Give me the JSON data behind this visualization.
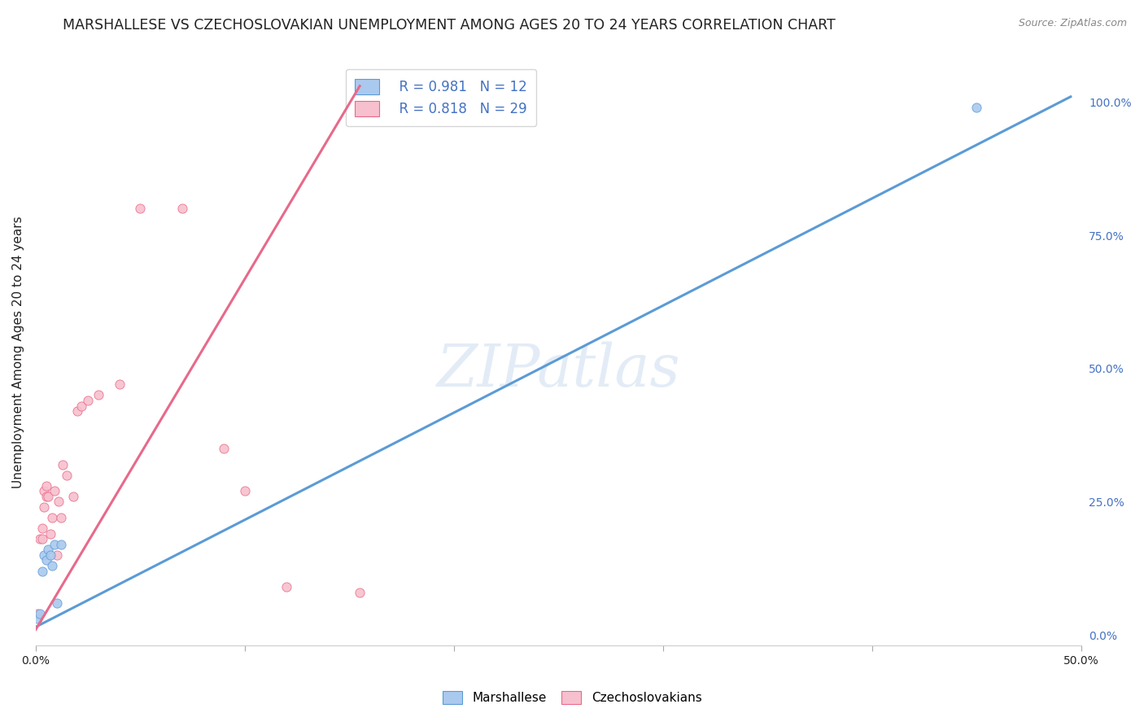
{
  "title": "MARSHALLESE VS CZECHOSLOVAKIAN UNEMPLOYMENT AMONG AGES 20 TO 24 YEARS CORRELATION CHART",
  "source": "Source: ZipAtlas.com",
  "ylabel": "Unemployment Among Ages 20 to 24 years",
  "xlim": [
    0.0,
    0.5
  ],
  "ylim": [
    -0.02,
    1.08
  ],
  "xtick_pos": [
    0.0,
    0.1,
    0.2,
    0.3,
    0.4,
    0.5
  ],
  "xtick_labels": [
    "0.0%",
    "",
    "",
    "",
    "",
    "50.0%"
  ],
  "ytick_labels_right": [
    "0.0%",
    "25.0%",
    "50.0%",
    "75.0%",
    "100.0%"
  ],
  "ytick_positions_right": [
    0.0,
    0.25,
    0.5,
    0.75,
    1.0
  ],
  "blue_color": "#aac9ee",
  "pink_color": "#f7c0ce",
  "blue_line_color": "#5b9bd5",
  "pink_line_color": "#e8698a",
  "text_color_blue": "#4472c4",
  "text_color_dark": "#222222",
  "legend_r_blue": "R = 0.981",
  "legend_n_blue": "N = 12",
  "legend_r_pink": "R = 0.818",
  "legend_n_pink": "N = 29",
  "watermark_text": "ZIPatlas",
  "blue_scatter_x": [
    0.001,
    0.002,
    0.003,
    0.004,
    0.005,
    0.006,
    0.007,
    0.008,
    0.009,
    0.01,
    0.012,
    0.45
  ],
  "blue_scatter_y": [
    0.03,
    0.04,
    0.12,
    0.15,
    0.14,
    0.16,
    0.15,
    0.13,
    0.17,
    0.06,
    0.17,
    0.99
  ],
  "pink_scatter_x": [
    0.001,
    0.002,
    0.003,
    0.003,
    0.004,
    0.004,
    0.005,
    0.005,
    0.006,
    0.007,
    0.008,
    0.009,
    0.01,
    0.011,
    0.012,
    0.013,
    0.015,
    0.018,
    0.02,
    0.022,
    0.025,
    0.03,
    0.04,
    0.05,
    0.07,
    0.09,
    0.1,
    0.12,
    0.155
  ],
  "pink_scatter_y": [
    0.04,
    0.18,
    0.18,
    0.2,
    0.24,
    0.27,
    0.26,
    0.28,
    0.26,
    0.19,
    0.22,
    0.27,
    0.15,
    0.25,
    0.22,
    0.32,
    0.3,
    0.26,
    0.42,
    0.43,
    0.44,
    0.45,
    0.47,
    0.8,
    0.8,
    0.35,
    0.27,
    0.09,
    0.08
  ],
  "blue_line_x": [
    0.0,
    0.495
  ],
  "blue_line_y": [
    0.015,
    1.01
  ],
  "pink_line_x": [
    0.0,
    0.155
  ],
  "pink_line_y": [
    0.01,
    1.03
  ],
  "marker_size": 65,
  "title_fontsize": 12.5,
  "axis_label_fontsize": 11,
  "tick_fontsize": 10,
  "legend_fontsize": 12
}
